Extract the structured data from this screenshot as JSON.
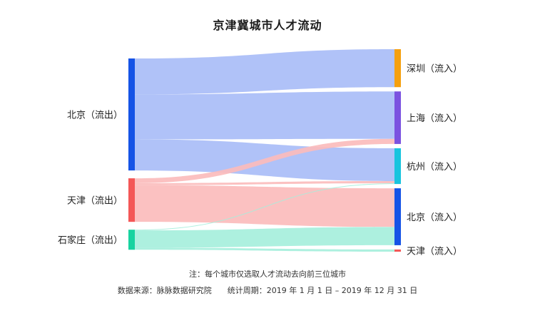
{
  "title": "京津冀城市人才流动",
  "footnote": "注：每个城市仅选取人才流动去向前三位城市",
  "source": "数据来源：脉脉数据研究院",
  "period": "统计周期：2019 年 1 月 1 日 – 2019 年 12 月 31 日",
  "chart_data": {
    "type": "sankey",
    "sources": [
      {
        "id": "bj_out",
        "label": "北京（流出）",
        "color": "#1553e6",
        "flow_color": "#a9bdf7"
      },
      {
        "id": "tj_out",
        "label": "天津（流出）",
        "color": "#f45757",
        "flow_color": "#fbbcbc"
      },
      {
        "id": "sjz_out",
        "label": "石家庄（流出）",
        "color": "#17d3a0",
        "flow_color": "#a6efdc"
      }
    ],
    "targets": [
      {
        "id": "sz_in",
        "label": "深圳（流入）",
        "color": "#f5a00f"
      },
      {
        "id": "sh_in",
        "label": "上海（流入）",
        "color": "#7b52e0"
      },
      {
        "id": "hz_in",
        "label": "杭州（流入）",
        "color": "#19c4de"
      },
      {
        "id": "bj_in",
        "label": "北京（流入）",
        "color": "#1553e6"
      },
      {
        "id": "tj_in",
        "label": "天津（流入）",
        "color": "#f45757"
      }
    ],
    "links": [
      {
        "source": "bj_out",
        "target": "sz_in",
        "value": 52
      },
      {
        "source": "bj_out",
        "target": "sh_in",
        "value": 65
      },
      {
        "source": "bj_out",
        "target": "hz_in",
        "value": 45
      },
      {
        "source": "tj_out",
        "target": "sh_in",
        "value": 7
      },
      {
        "source": "tj_out",
        "target": "hz_in",
        "value": 3
      },
      {
        "source": "tj_out",
        "target": "bj_in",
        "value": 53
      },
      {
        "source": "sjz_out",
        "target": "hz_in",
        "value": 1
      },
      {
        "source": "sjz_out",
        "target": "bj_in",
        "value": 25
      },
      {
        "source": "sjz_out",
        "target": "tj_in",
        "value": 3
      }
    ]
  }
}
